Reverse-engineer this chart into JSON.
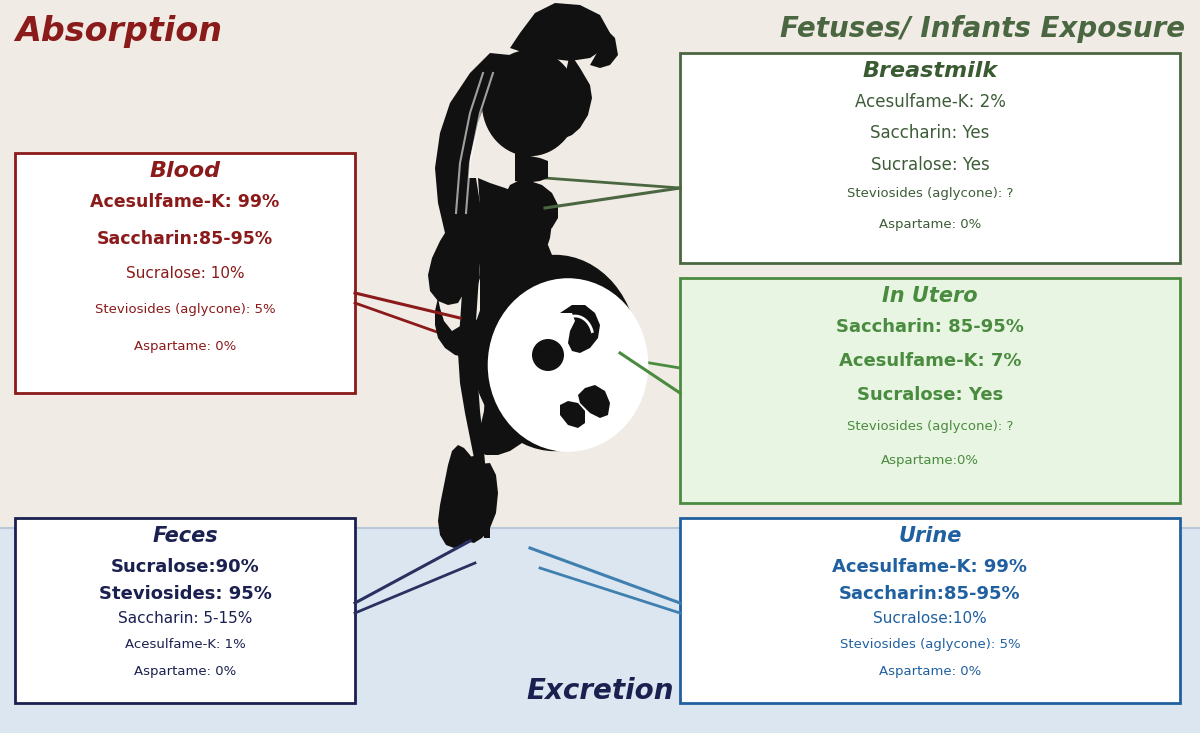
{
  "bg_top_color": "#f0ebe4",
  "bg_bottom_color": "#dce6f0",
  "title_absorption": "Absorption",
  "title_absorption_color": "#8b1a1a",
  "title_right": "Fetuses/ Infants Exposure",
  "title_right_color": "#4a6741",
  "title_bottom": "Excretion",
  "title_bottom_color": "#1a2050",
  "blood_title": "Blood",
  "blood_title_color": "#8b1a1a",
  "blood_lines": [
    {
      "text": "Acesulfame-K: 99%",
      "color": "#8b1a1a",
      "size": 12.5,
      "bold": true
    },
    {
      "text": "Saccharin:85-95%",
      "color": "#8b1a1a",
      "size": 12.5,
      "bold": true
    },
    {
      "text": "Sucralose: 10%",
      "color": "#8b1a1a",
      "size": 11,
      "bold": false
    },
    {
      "text": "Steviosides (aglycone): 5%",
      "color": "#8b1a1a",
      "size": 9.5,
      "bold": false
    },
    {
      "text": "Aspartame: 0%",
      "color": "#8b1a1a",
      "size": 9.5,
      "bold": false
    }
  ],
  "blood_box_color": "#8b1a1a",
  "blood_box_bg": "#ffffff",
  "breastmilk_title": "Breastmilk",
  "breastmilk_title_color": "#3a5a32",
  "breastmilk_lines": [
    {
      "text": "Acesulfame-K: 2%",
      "color": "#3d5c38",
      "size": 12,
      "bold": false
    },
    {
      "text": "Saccharin: Yes",
      "color": "#3d5c38",
      "size": 12,
      "bold": false
    },
    {
      "text": "Sucralose: Yes",
      "color": "#3d5c38",
      "size": 12,
      "bold": false
    },
    {
      "text": "Steviosides (aglycone): ?",
      "color": "#3d5c38",
      "size": 9.5,
      "bold": false
    },
    {
      "text": "Aspartame: 0%",
      "color": "#3d5c38",
      "size": 9.5,
      "bold": false
    }
  ],
  "breastmilk_box_color": "#4a6741",
  "breastmilk_box_bg": "#ffffff",
  "inutero_title": "In Utero",
  "inutero_title_color": "#4a8c3f",
  "inutero_lines": [
    {
      "text": "Saccharin: 85-95%",
      "color": "#4a8c3f",
      "size": 13,
      "bold": true
    },
    {
      "text": "Acesulfame-K: 7%",
      "color": "#4a8c3f",
      "size": 13,
      "bold": true
    },
    {
      "text": "Sucralose: Yes",
      "color": "#4a8c3f",
      "size": 13,
      "bold": true
    },
    {
      "text": "Steviosides (aglycone): ?",
      "color": "#4a8c3f",
      "size": 9.5,
      "bold": false
    },
    {
      "text": "Aspartame:0%",
      "color": "#4a8c3f",
      "size": 9.5,
      "bold": false
    }
  ],
  "inutero_box_color": "#4a8c3f",
  "inutero_box_bg": "#e8f5e2",
  "feces_title": "Feces",
  "feces_title_color": "#1a2050",
  "feces_lines": [
    {
      "text": "Sucralose:90%",
      "color": "#1a2050",
      "size": 13,
      "bold": true
    },
    {
      "text": "Steviosides: 95%",
      "color": "#1a2050",
      "size": 13,
      "bold": true
    },
    {
      "text": "Saccharin: 5-15%",
      "color": "#1a2050",
      "size": 11,
      "bold": false
    },
    {
      "text": "Acesulfame-K: 1%",
      "color": "#1a2050",
      "size": 9.5,
      "bold": false
    },
    {
      "text": "Aspartame: 0%",
      "color": "#1a2050",
      "size": 9.5,
      "bold": false
    }
  ],
  "feces_box_color": "#1a2050",
  "feces_box_bg": "#ffffff",
  "urine_title": "Urine",
  "urine_title_color": "#2060a0",
  "urine_lines": [
    {
      "text": "Acesulfame-K: 99%",
      "color": "#2060a0",
      "size": 13,
      "bold": true
    },
    {
      "text": "Saccharin:85-95%",
      "color": "#2060a0",
      "size": 13,
      "bold": true
    },
    {
      "text": "Sucralose:10%",
      "color": "#2060a0",
      "size": 11,
      "bold": false
    },
    {
      "text": "Steviosides (aglycone): 5%",
      "color": "#2060a0",
      "size": 9.5,
      "bold": false
    },
    {
      "text": "Aspartame: 0%",
      "color": "#2060a0",
      "size": 9.5,
      "bold": false
    }
  ],
  "urine_box_color": "#2060a0",
  "urine_box_bg": "#ffffff",
  "line_blood_color": "#8b1a1a",
  "line_breastmilk_color": "#4a6741",
  "line_inutero_color": "#4a8c3f",
  "line_feces_color": "#2a3060",
  "line_urine_color": "#4080b0"
}
